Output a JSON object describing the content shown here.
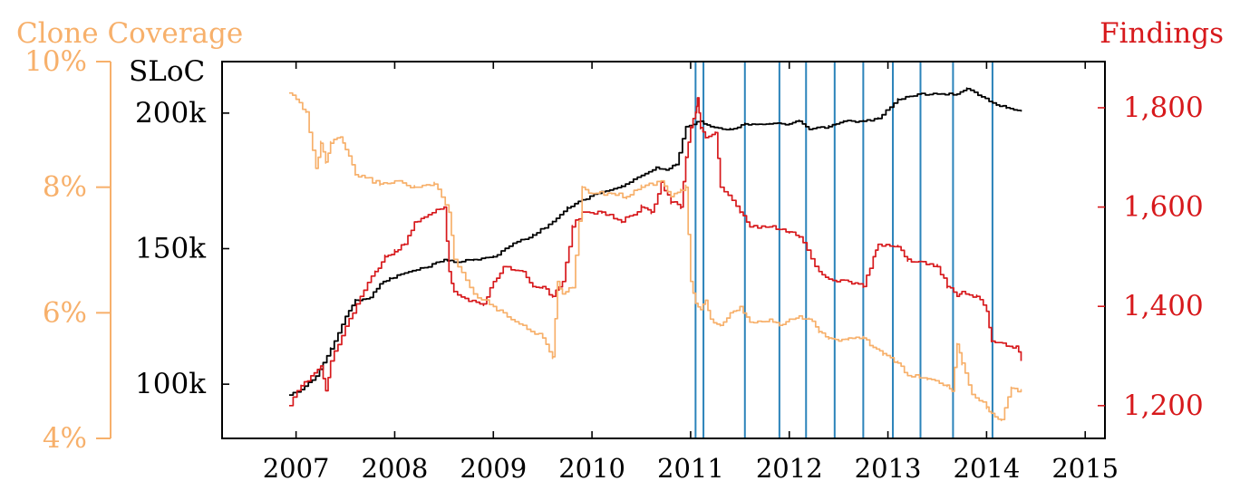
{
  "chart_data": {
    "type": "line",
    "title": "",
    "xlabel": "",
    "x_ticks": [
      "2007",
      "2008",
      "2009",
      "2010",
      "2011",
      "2012",
      "2013",
      "2014",
      "2015"
    ],
    "xlim": [
      2006.25,
      2015.2
    ],
    "axes": {
      "clone_coverage": {
        "label": "Clone Coverage",
        "ticks": [
          "4%",
          "6%",
          "8%",
          "10%"
        ],
        "range": [
          4,
          10
        ],
        "color": "#f7b06b"
      },
      "sloc": {
        "label": "SLoC",
        "ticks": [
          "100k",
          "150k",
          "200k"
        ],
        "range": [
          80,
          219
        ],
        "color": "#000000"
      },
      "findings": {
        "label": "Findings",
        "ticks": [
          "1,200",
          "1,400",
          "1,600",
          "1,800"
        ],
        "range": [
          1134,
          1893
        ],
        "color": "#d7191c"
      }
    },
    "markers": {
      "color": "#2b83ba",
      "x": [
        2011.05,
        2011.13,
        2011.55,
        2011.9,
        2012.17,
        2012.46,
        2012.75,
        2013.05,
        2013.33,
        2013.66,
        2014.06
      ]
    },
    "series": [
      {
        "axis": "sloc",
        "color": "#000000",
        "x": [
          2006.93,
          2007.05,
          2007.2,
          2007.35,
          2007.5,
          2007.6,
          2007.75,
          2007.85,
          2007.95,
          2008.1,
          2008.3,
          2008.5,
          2008.6,
          2008.8,
          2009.0,
          2009.2,
          2009.4,
          2009.6,
          2009.75,
          2009.9,
          2010.1,
          2010.3,
          2010.5,
          2010.65,
          2010.75,
          2010.85,
          2010.95,
          2011.1,
          2011.2,
          2011.4,
          2011.55,
          2011.8,
          2012.0,
          2012.1,
          2012.2,
          2012.4,
          2012.55,
          2012.75,
          2012.9,
          2013.1,
          2013.3,
          2013.5,
          2013.7,
          2013.8,
          2013.95,
          2014.1,
          2014.2,
          2014.35
        ],
        "values": [
          96,
          98,
          103,
          113,
          125,
          131,
          132,
          137,
          139,
          141,
          143,
          146,
          145,
          146,
          147,
          152,
          155,
          160,
          165,
          168,
          171,
          173,
          177,
          180,
          179,
          181,
          195,
          197,
          195,
          194,
          196,
          196,
          196,
          197,
          194,
          195,
          197,
          197,
          198,
          205,
          207,
          207,
          207,
          209,
          206,
          203,
          202,
          201
        ]
      },
      {
        "axis": "findings",
        "color": "#d7191c",
        "x": [
          2006.93,
          2007.05,
          2007.15,
          2007.25,
          2007.3,
          2007.35,
          2007.5,
          2007.65,
          2007.8,
          2007.9,
          2008.0,
          2008.1,
          2008.2,
          2008.3,
          2008.5,
          2008.55,
          2008.6,
          2008.75,
          2008.9,
          2009.0,
          2009.1,
          2009.3,
          2009.4,
          2009.5,
          2009.6,
          2009.7,
          2009.8,
          2009.9,
          2010.1,
          2010.3,
          2010.5,
          2010.6,
          2010.7,
          2010.8,
          2010.9,
          2010.95,
          2011.0,
          2011.05,
          2011.07,
          2011.1,
          2011.15,
          2011.25,
          2011.3,
          2011.5,
          2011.6,
          2011.8,
          2011.9,
          2012.0,
          2012.1,
          2012.3,
          2012.4,
          2012.6,
          2012.7,
          2012.75,
          2012.85,
          2012.9,
          2013.1,
          2013.2,
          2013.5,
          2013.6,
          2013.7,
          2013.75,
          2013.9,
          2014.0,
          2014.05,
          2014.2,
          2014.3,
          2014.35
        ],
        "values": [
          1200,
          1240,
          1260,
          1280,
          1230,
          1290,
          1360,
          1420,
          1470,
          1500,
          1510,
          1525,
          1570,
          1580,
          1600,
          1470,
          1430,
          1410,
          1405,
          1450,
          1480,
          1470,
          1440,
          1440,
          1420,
          1450,
          1560,
          1590,
          1590,
          1570,
          1600,
          1590,
          1650,
          1610,
          1600,
          1700,
          1760,
          1790,
          1820,
          1760,
          1740,
          1750,
          1640,
          1590,
          1560,
          1560,
          1555,
          1550,
          1540,
          1470,
          1455,
          1450,
          1445,
          1440,
          1500,
          1525,
          1520,
          1495,
          1480,
          1440,
          1420,
          1430,
          1420,
          1390,
          1330,
          1320,
          1320,
          1290
        ]
      },
      {
        "axis": "clone_coverage",
        "color": "#f7b06b",
        "x": [
          2006.93,
          2007.0,
          2007.1,
          2007.2,
          2007.25,
          2007.3,
          2007.35,
          2007.45,
          2007.5,
          2007.6,
          2007.7,
          2007.85,
          2008.0,
          2008.2,
          2008.4,
          2008.55,
          2008.6,
          2008.8,
          2009.0,
          2009.1,
          2009.3,
          2009.5,
          2009.6,
          2009.65,
          2009.7,
          2009.8,
          2009.9,
          2010.0,
          2010.2,
          2010.35,
          2010.5,
          2010.7,
          2010.8,
          2010.9,
          2010.95,
          2011.0,
          2011.05,
          2011.1,
          2011.15,
          2011.2,
          2011.3,
          2011.4,
          2011.5,
          2011.6,
          2011.8,
          2011.9,
          2012.0,
          2012.1,
          2012.2,
          2012.3,
          2012.4,
          2012.5,
          2012.6,
          2012.75,
          2012.85,
          2012.95,
          2013.1,
          2013.2,
          2013.4,
          2013.6,
          2013.65,
          2013.7,
          2013.75,
          2013.85,
          2014.0,
          2014.05,
          2014.15,
          2014.25,
          2014.35
        ],
        "values": [
          9.5,
          9.4,
          9.2,
          8.3,
          8.7,
          8.4,
          8.7,
          8.8,
          8.6,
          8.2,
          8.15,
          8.05,
          8.1,
          8.0,
          8.05,
          7.6,
          6.85,
          6.3,
          6.1,
          6.0,
          5.8,
          5.6,
          5.3,
          6.5,
          6.3,
          6.4,
          8.0,
          7.9,
          7.9,
          7.85,
          8.0,
          8.1,
          7.85,
          7.95,
          8.0,
          6.5,
          6.15,
          6.05,
          6.2,
          5.9,
          5.8,
          6.0,
          6.1,
          5.85,
          5.9,
          5.8,
          5.9,
          5.95,
          5.9,
          5.7,
          5.6,
          5.55,
          5.6,
          5.6,
          5.45,
          5.35,
          5.2,
          5.0,
          4.95,
          4.85,
          4.75,
          5.5,
          5.2,
          4.7,
          4.5,
          4.4,
          4.3,
          4.8,
          4.75
        ]
      }
    ]
  }
}
